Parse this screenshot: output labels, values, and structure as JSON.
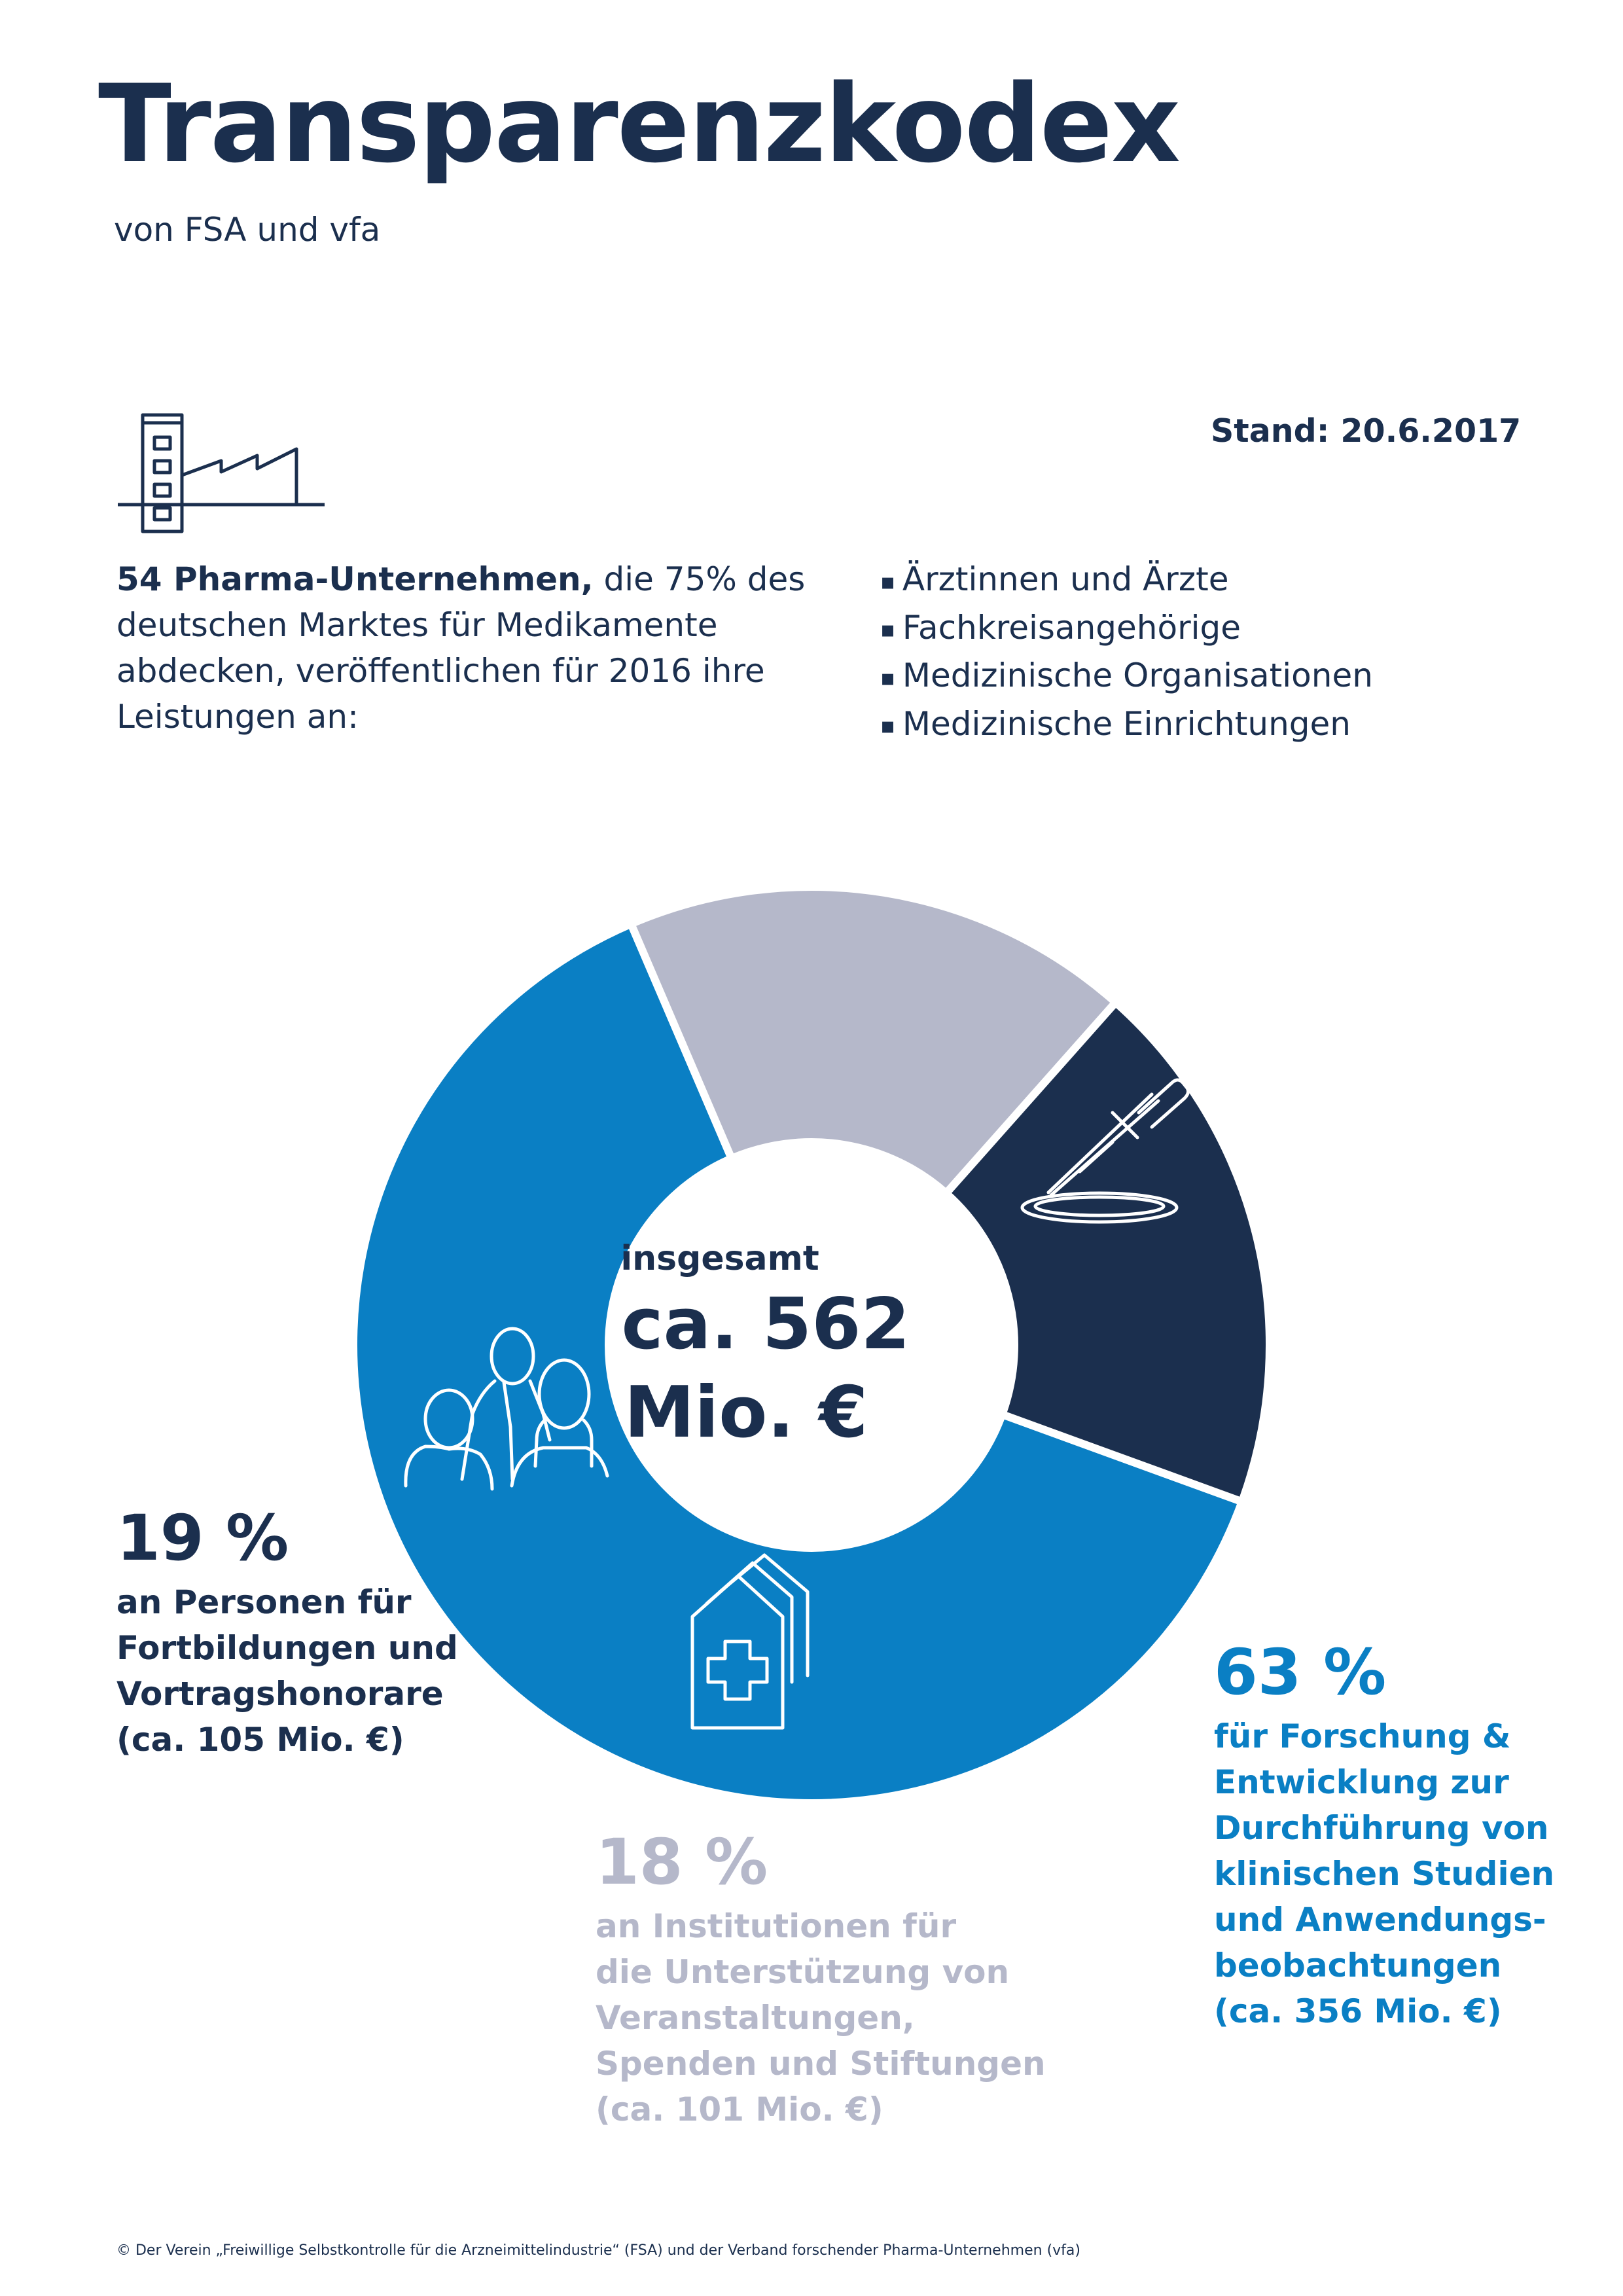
{
  "header": {
    "title": "Transparenzkodex",
    "subtitle": "von FSA und vfa",
    "stand": "Stand: 20.6.2017"
  },
  "intro": {
    "bold": "54 Pharma-Unternehmen,",
    "text": " die 75% des deutschen Marktes für Medikamente abdecken, veröffentlichen für 2016 ihre Leistungen an:"
  },
  "recipients": [
    "Ärztinnen und Ärzte",
    "Fachkreisangehörige",
    "Medizinische Organisationen",
    "Medizinische Einrichtungen"
  ],
  "icons": {
    "intro": "factory-icon",
    "research": "pipette-petri-dish-icon",
    "persons": "people-icon",
    "institutions": "hospital-icon"
  },
  "center": {
    "label": "insgesamt",
    "value_line1": "ca. 562",
    "value_line2": "Mio. €"
  },
  "chart_data": {
    "type": "pie",
    "categories": [
      "für Forschung & Entwicklung zur Durchführung von klinischen Studien und Anwendungsbeobachtungen",
      "an Institutionen für die Unterstützung von Veranstaltungen, Spenden und Stiftungen",
      "an Personen für Fortbildungen und Vortragshonorare"
    ],
    "values": [
      63,
      18,
      19
    ],
    "amounts": [
      "ca. 356 Mio. €",
      "ca. 101 Mio. €",
      "ca. 105 Mio. €"
    ],
    "percent_labels": [
      "63 %",
      "18 %",
      "19 %"
    ],
    "colors": [
      "#0a7fc4",
      "#b5b8ca",
      "#1b2f4e"
    ],
    "total": "ca. 562 Mio. €"
  },
  "blocks": {
    "research": {
      "pct": "63 %",
      "desc_lines": [
        "für Forschung &",
        "Entwicklung zur",
        "Durchführung von",
        "klinischen Studien",
        "und Anwendungs-",
        "beobachtungen",
        "(ca. 356 Mio. €)"
      ]
    },
    "institutions": {
      "pct": "18 %",
      "desc_lines": [
        "an Institutionen für",
        "die Unterstützung von",
        "Veranstaltungen,",
        "Spenden und Stiftungen",
        "(ca. 101 Mio. €)"
      ]
    },
    "persons": {
      "pct": "19 %",
      "desc_lines": [
        "an Personen für",
        "Fortbildungen und",
        "Vortragshonorare",
        "(ca. 105 Mio. €)"
      ]
    }
  },
  "footer": "© Der Verein „Freiwillige Selbstkontrolle für die Arzneimittelindustrie“ (FSA) und der Verband forschender Pharma-Unternehmen (vfa)"
}
